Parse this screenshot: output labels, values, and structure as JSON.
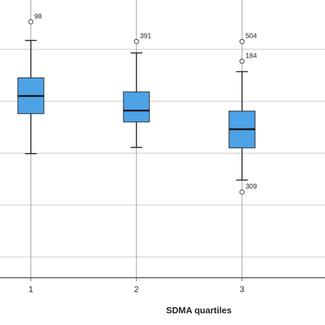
{
  "chart_data": {
    "type": "boxplot",
    "title": "",
    "xlabel": "SDMA quartiles",
    "ylabel": "",
    "categories": [
      "1",
      "2",
      "3"
    ],
    "ylim": [
      -0.4,
      4.95
    ],
    "grid": true,
    "boxes": [
      {
        "category": "1",
        "whisker_low": 1.99,
        "q1": 2.76,
        "median": 3.1,
        "q3": 3.45,
        "whisker_high": 4.17,
        "outliers": [
          {
            "value": 4.53,
            "label": "98"
          }
        ]
      },
      {
        "category": "2",
        "whisker_low": 2.11,
        "q1": 2.6,
        "median": 2.82,
        "q3": 3.18,
        "whisker_high": 3.93,
        "outliers": [
          {
            "value": 4.15,
            "label": "391"
          }
        ]
      },
      {
        "category": "3",
        "whisker_low": 1.48,
        "q1": 2.1,
        "median": 2.46,
        "q3": 2.81,
        "whisker_high": 3.57,
        "outliers": [
          {
            "value": 4.15,
            "label": "504"
          },
          {
            "value": 3.77,
            "label": "184"
          },
          {
            "value": 1.25,
            "label": "309"
          }
        ]
      }
    ],
    "colors": {
      "box_fill": "#4ea2e6",
      "box_stroke": "#222222",
      "grid": "#c8c8c8",
      "axis": "#555555"
    }
  }
}
